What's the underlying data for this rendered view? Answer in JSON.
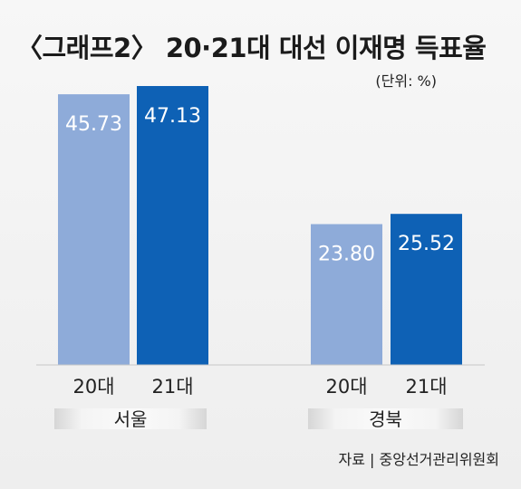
{
  "chart_data": {
    "type": "bar",
    "title": "〈그래프2〉 20·21대 대선 이재명 득표율",
    "unit_label": "(단위: %)",
    "groups": [
      "서울",
      "경북"
    ],
    "categories": [
      "20대",
      "21대"
    ],
    "series": [
      {
        "values": [
          45.73,
          23.8
        ]
      },
      {
        "values": [
          47.13,
          25.52
        ]
      }
    ],
    "value_labels": [
      [
        "45.73",
        "47.13"
      ],
      [
        "23.80",
        "25.52"
      ]
    ],
    "ylim": [
      0,
      47.13
    ],
    "grid": false,
    "colors": {
      "series_20": "#8eabd9",
      "series_21": "#0e61b5",
      "value_label_text": "#ffffff",
      "group_band": "#dfdfdf"
    },
    "source": "자료 | 중앙선거관리위원회"
  }
}
